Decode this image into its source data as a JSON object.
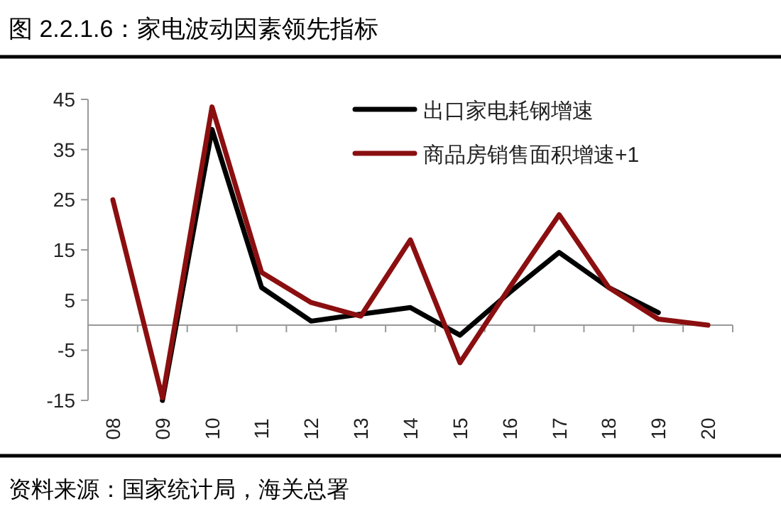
{
  "chart_data": {
    "type": "line",
    "title": "图 2.2.1.6：家电波动因素领先指标",
    "categories": [
      "08",
      "09",
      "10",
      "11",
      "12",
      "13",
      "14",
      "15",
      "16",
      "17",
      "18",
      "19",
      "20"
    ],
    "series": [
      {
        "name": "出口家电耗钢增速",
        "color": "#000000",
        "values": [
          null,
          -15,
          39,
          7.5,
          0.8,
          2.2,
          3.5,
          -2,
          6.5,
          14.5,
          7.5,
          2.5,
          null
        ]
      },
      {
        "name": "商品房销售面积增速+1",
        "color": "#8b0f10",
        "values": [
          25,
          -14.5,
          43.5,
          10.5,
          4.5,
          1.8,
          17,
          -7.5,
          7.5,
          22,
          7.5,
          1.2,
          0
        ]
      }
    ],
    "ylim": [
      -15,
      45
    ],
    "yticks": [
      -15,
      -5,
      5,
      15,
      25,
      35,
      45
    ],
    "grid": false,
    "legend": "top right",
    "marker": "none",
    "line_style": "solid",
    "annotations": [
      "资料来源：国家统计局，海关总署"
    ]
  }
}
